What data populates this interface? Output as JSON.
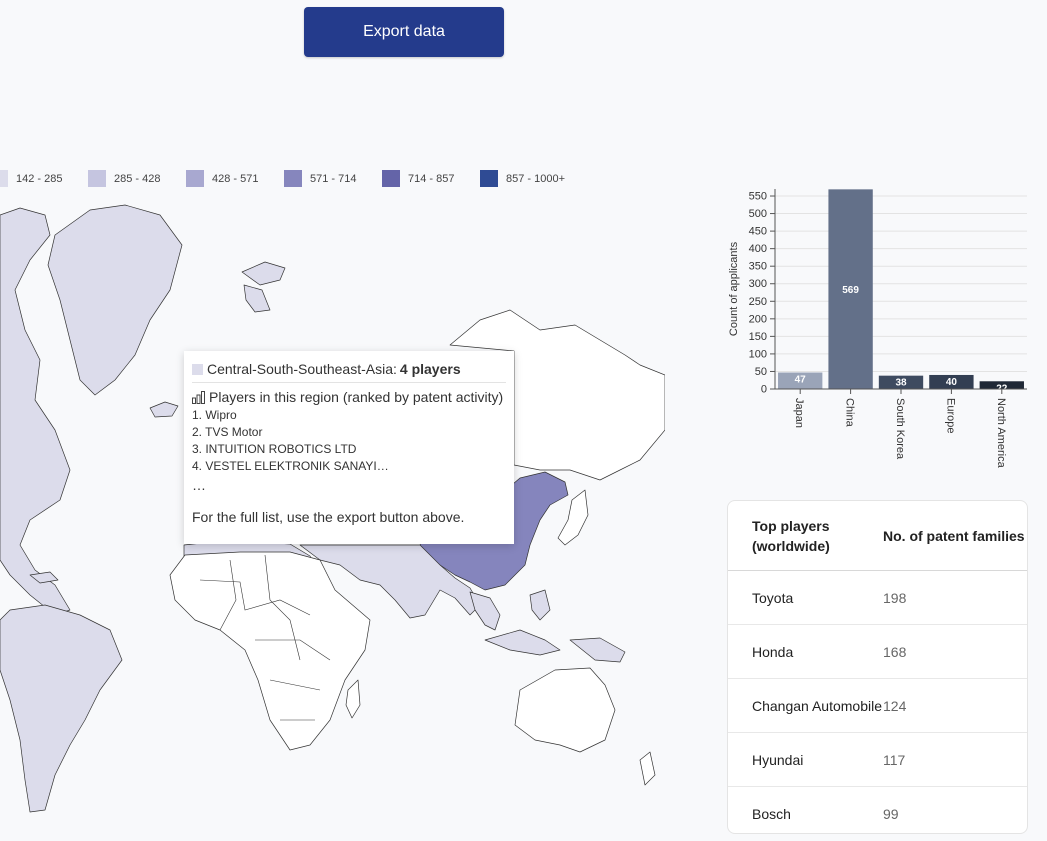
{
  "toolbar": {
    "export_label": "Export data"
  },
  "legend": [
    {
      "label": "142 - 285",
      "color": "#dcdceb"
    },
    {
      "label": "285 - 428",
      "color": "#c5c5e0"
    },
    {
      "label": "428 - 571",
      "color": "#a8a8d0"
    },
    {
      "label": "571 - 714",
      "color": "#8686bd"
    },
    {
      "label": "714 - 857",
      "color": "#6464a8"
    },
    {
      "label": "857 - 1000+",
      "color": "#2f4b94"
    }
  ],
  "map": {
    "colors": {
      "light": "#dcdceb",
      "highlight": "#8585bd",
      "none": "#ffffff",
      "stroke": "#333333"
    }
  },
  "tooltip": {
    "region": "Central-South-Southeast-Asia",
    "count": "4 players",
    "subtitle": "Players in this region (ranked by patent activity)",
    "players": [
      "1. Wipro",
      "2. TVS Motor",
      "3. INTUITION ROBOTICS LTD",
      "4. VESTEL ELEKTRONIK SANAYI…"
    ],
    "ellipsis": "…",
    "note": "For the full list, use the export button above.",
    "swatch_color": "#dcdceb",
    "icon": "bar-chart-icon"
  },
  "chart_data": {
    "type": "bar",
    "categories": [
      "Japan",
      "China",
      "South Korea",
      "Europe",
      "North America"
    ],
    "values": [
      47,
      569,
      38,
      40,
      22
    ],
    "colors": [
      "#9aa4b8",
      "#637089",
      "#3e4b60",
      "#323e52",
      "#1f2836"
    ],
    "ylabel": "Count of applicants",
    "yticks": [
      0,
      50,
      100,
      150,
      200,
      250,
      300,
      350,
      400,
      450,
      500,
      550
    ],
    "ylim": [
      0,
      570
    ],
    "grid": true
  },
  "table": {
    "headers": [
      "Top players (worldwide)",
      "No. of patent families"
    ],
    "rows": [
      [
        "Toyota",
        "198"
      ],
      [
        "Honda",
        "168"
      ],
      [
        "Changan Automobile",
        "124"
      ],
      [
        "Hyundai",
        "117"
      ],
      [
        "Bosch",
        "99"
      ]
    ]
  }
}
